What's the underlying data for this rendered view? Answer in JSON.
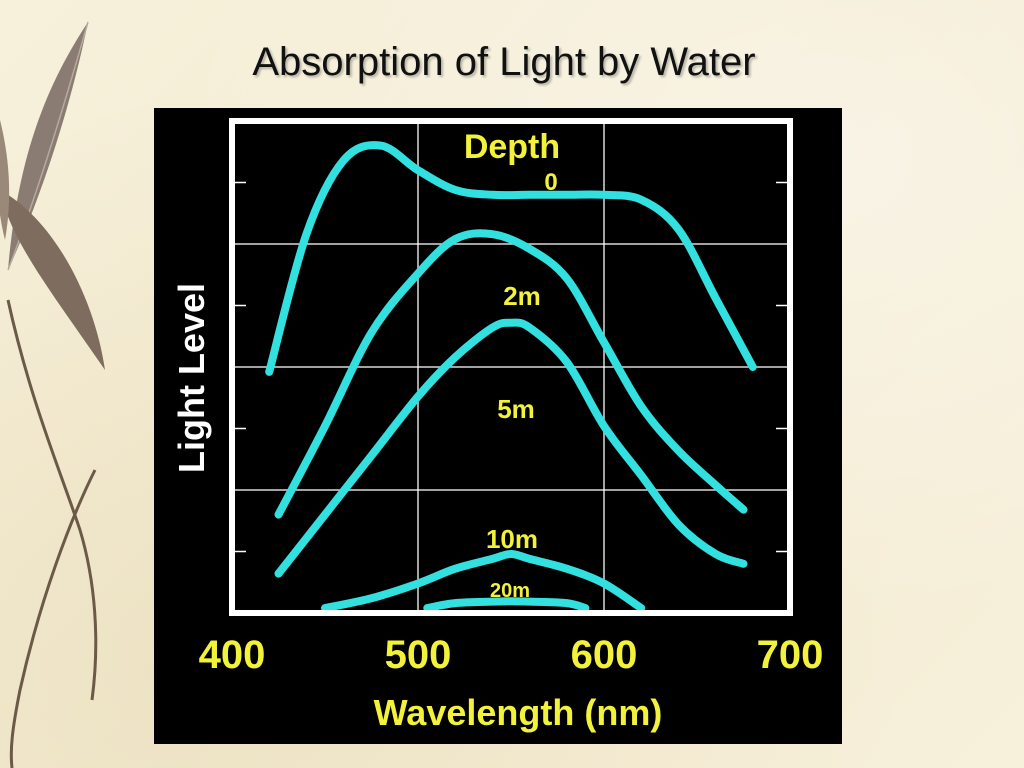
{
  "slide": {
    "title": "Absorption of Light by Water"
  },
  "chart_data": {
    "type": "line",
    "title": "",
    "xlabel": "Wavelength (nm)",
    "ylabel": "Light Level",
    "legend_title": "Depth",
    "xlim": [
      400,
      700
    ],
    "ylim": [
      0,
      100
    ],
    "xticks": [
      "400",
      "500",
      "600",
      "700"
    ],
    "grid": true,
    "colors": {
      "curve": "#33e0e0",
      "label": "#f2f23a",
      "axis_text": "#f2f23a",
      "ylabel": "#ffffff",
      "frame": "#ffffff",
      "grid": "#ffffff"
    },
    "series": [
      {
        "name": "0",
        "x": [
          420,
          440,
          460,
          480,
          500,
          520,
          540,
          560,
          580,
          600,
          620,
          640,
          660,
          680
        ],
        "y": [
          49,
          77,
          92,
          95,
          90,
          86,
          85,
          85,
          85,
          85,
          84,
          78,
          64,
          50
        ]
      },
      {
        "name": "2m",
        "x": [
          425,
          450,
          475,
          500,
          520,
          540,
          560,
          580,
          600,
          620,
          640,
          660,
          675
        ],
        "y": [
          20,
          38,
          57,
          69,
          76,
          77,
          74,
          68,
          55,
          42,
          33,
          26,
          21
        ]
      },
      {
        "name": "5m",
        "x": [
          425,
          450,
          475,
          500,
          520,
          540,
          550,
          560,
          580,
          600,
          620,
          640,
          660,
          675
        ],
        "y": [
          8,
          20,
          32,
          44,
          52,
          58,
          59,
          58,
          51,
          38,
          28,
          18,
          12,
          10
        ]
      },
      {
        "name": "10m",
        "x": [
          450,
          475,
          500,
          520,
          540,
          550,
          560,
          580,
          600,
          620
        ],
        "y": [
          1,
          3,
          6,
          9,
          11,
          12,
          11,
          9,
          6,
          1
        ]
      },
      {
        "name": "20m",
        "x": [
          505,
          520,
          540,
          550,
          560,
          580,
          590
        ],
        "y": [
          1,
          2,
          2.3,
          2.4,
          2.3,
          2,
          1
        ]
      }
    ]
  }
}
